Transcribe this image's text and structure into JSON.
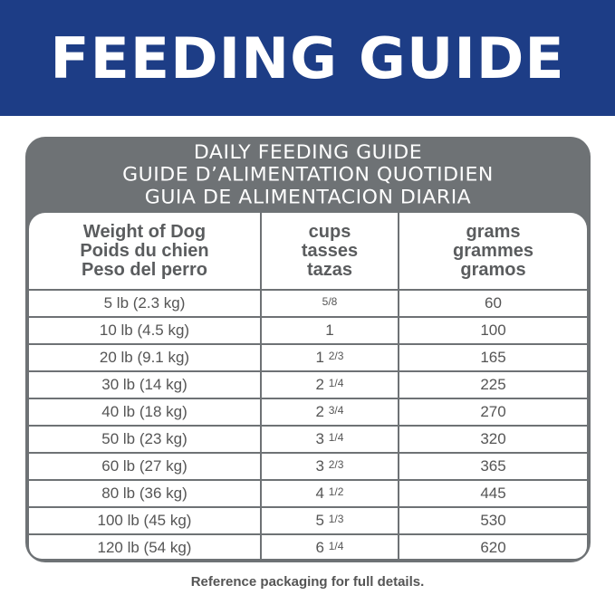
{
  "banner": {
    "title": "FEEDING GUIDE",
    "color": "#1d3d86"
  },
  "card": {
    "titles": [
      "DAILY FEEDING GUIDE",
      "GUIDE D’ALIMENTATION QUOTIDIEN",
      "GUIA DE ALIMENTACION DIARIA"
    ],
    "columns": [
      [
        "Weight of Dog",
        "Poids du chien",
        "Peso del perro"
      ],
      [
        "cups",
        "tasses",
        "tazas"
      ],
      [
        "grams",
        "grammes",
        "gramos"
      ]
    ],
    "rows": [
      {
        "weight": "5 lb (2.3 kg)",
        "cups_whole": "",
        "cups_frac": "5/8",
        "grams": "60"
      },
      {
        "weight": "10 lb (4.5 kg)",
        "cups_whole": "1",
        "cups_frac": "",
        "grams": "100"
      },
      {
        "weight": "20 lb (9.1 kg)",
        "cups_whole": "1",
        "cups_frac": "2/3",
        "grams": "165"
      },
      {
        "weight": "30 lb (14 kg)",
        "cups_whole": "2",
        "cups_frac": "1/4",
        "grams": "225"
      },
      {
        "weight": "40 lb (18 kg)",
        "cups_whole": "2",
        "cups_frac": "3/4",
        "grams": "270"
      },
      {
        "weight": "50 lb (23 kg)",
        "cups_whole": "3",
        "cups_frac": "1/4",
        "grams": "320"
      },
      {
        "weight": "60 lb (27 kg)",
        "cups_whole": "3",
        "cups_frac": "2/3",
        "grams": "365"
      },
      {
        "weight": "80 lb (36 kg)",
        "cups_whole": "4",
        "cups_frac": "1/2",
        "grams": "445"
      },
      {
        "weight": "100 lb (45 kg)",
        "cups_whole": "5",
        "cups_frac": "1/3",
        "grams": "530"
      },
      {
        "weight": "120 lb (54 kg)",
        "cups_whole": "6",
        "cups_frac": "1/4",
        "grams": "620"
      }
    ]
  },
  "footer": "Reference packaging for full details."
}
